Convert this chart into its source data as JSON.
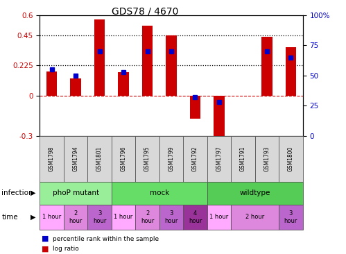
{
  "title": "GDS78 / 4670",
  "samples": [
    "GSM1798",
    "GSM1794",
    "GSM1801",
    "GSM1796",
    "GSM1795",
    "GSM1799",
    "GSM1792",
    "GSM1797",
    "GSM1791",
    "GSM1793",
    "GSM1800"
  ],
  "log_ratio": [
    0.18,
    0.13,
    0.57,
    0.175,
    0.52,
    0.45,
    -0.17,
    -0.38,
    0.0,
    0.44,
    0.36
  ],
  "percentile": [
    55,
    50,
    70,
    53,
    70,
    70,
    32,
    28,
    null,
    70,
    65
  ],
  "ylim_left": [
    -0.3,
    0.6
  ],
  "ylim_right": [
    0,
    100
  ],
  "yticks_left": [
    -0.3,
    0,
    0.225,
    0.45,
    0.6
  ],
  "yticks_right": [
    0,
    25,
    50,
    75,
    100
  ],
  "hlines": [
    0.225,
    0.45
  ],
  "bar_color": "#cc0000",
  "dot_color": "#0000cc",
  "infection_groups": [
    {
      "label": "phoP mutant",
      "start": 0,
      "end": 3,
      "color": "#99ee99"
    },
    {
      "label": "mock",
      "start": 3,
      "end": 7,
      "color": "#66dd66"
    },
    {
      "label": "wildtype",
      "start": 7,
      "end": 11,
      "color": "#55cc55"
    }
  ],
  "time_spans": [
    {
      "start": 0,
      "end": 1,
      "label": "1 hour",
      "color": "#ffaaff"
    },
    {
      "start": 1,
      "end": 2,
      "label": "2\nhour",
      "color": "#dd88dd"
    },
    {
      "start": 2,
      "end": 3,
      "label": "3\nhour",
      "color": "#bb66cc"
    },
    {
      "start": 3,
      "end": 4,
      "label": "1 hour",
      "color": "#ffaaff"
    },
    {
      "start": 4,
      "end": 5,
      "label": "2\nhour",
      "color": "#dd88dd"
    },
    {
      "start": 5,
      "end": 6,
      "label": "3\nhour",
      "color": "#bb66cc"
    },
    {
      "start": 6,
      "end": 7,
      "label": "4\nhour",
      "color": "#993399"
    },
    {
      "start": 7,
      "end": 8,
      "label": "1 hour",
      "color": "#ffaaff"
    },
    {
      "start": 8,
      "end": 10,
      "label": "2 hour",
      "color": "#dd88dd"
    },
    {
      "start": 10,
      "end": 11,
      "label": "3\nhour",
      "color": "#bb66cc"
    }
  ],
  "bg_color": "#ffffff",
  "tick_label_color_left": "#cc0000",
  "tick_label_color_right": "#0000cc",
  "gsm_cell_color": "#d8d8d8"
}
